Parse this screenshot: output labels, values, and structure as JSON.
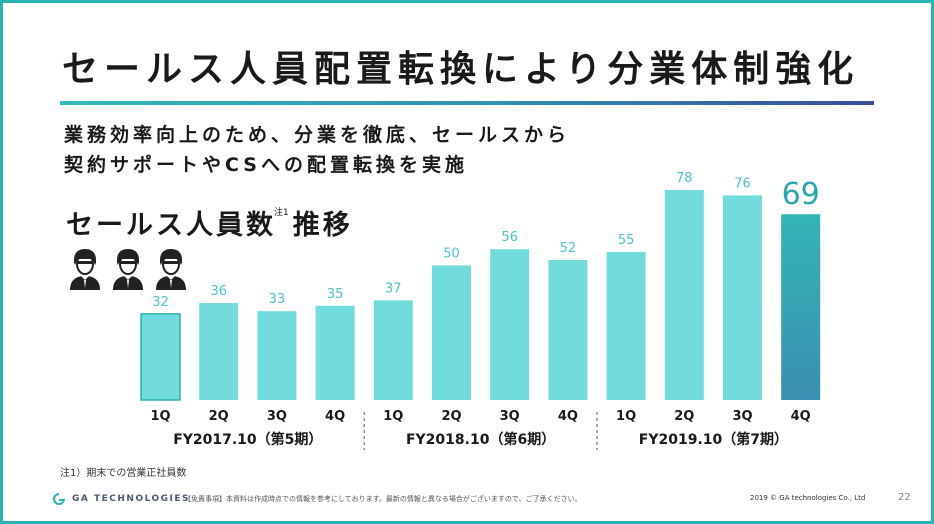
{
  "slide": {
    "title": "セールス人員配置転換により分業体制強化",
    "subtitle_lines": [
      "業務効率向上のため、分業を徹底、セールスから",
      "契約サポートやCSへの配置転換を実施"
    ],
    "metric_title": "セールス人員数",
    "metric_note_mark": "注1",
    "metric_title_suffix": "推移",
    "people_icon": "person-with-tie-icon",
    "footnote": "注1）期末での営業正社員数",
    "logo_text": "GA TECHNOLOGIES",
    "disclaimer": "【免責事項】本資料は作成時点での情報を参考にしております。最新の情報と異なる場合がございますので、ご了承ください。",
    "copyright": "2019 © GA technologies Co., Ltd",
    "page_number": "22"
  },
  "colors": {
    "bar": "#72dcdc",
    "bar_first_outline": "#2ab2b5",
    "bar_latest_top": "#33b5b6",
    "bar_latest_bottom": "#3a8fb0",
    "value_label": "#4cc3c8",
    "latest_label": "#2aa6b0",
    "accent": "#2ab2b5"
  },
  "chart_data": {
    "type": "bar",
    "categories": [
      "1Q",
      "2Q",
      "3Q",
      "4Q",
      "1Q",
      "2Q",
      "3Q",
      "4Q",
      "1Q",
      "2Q",
      "3Q",
      "4Q"
    ],
    "values": [
      32,
      36,
      33,
      35,
      37,
      50,
      56,
      52,
      55,
      78,
      76,
      69
    ],
    "groups": [
      {
        "label": "FY2017.10（第5期）",
        "span": [
          0,
          3
        ]
      },
      {
        "label": "FY2018.10（第6期）",
        "span": [
          4,
          7
        ]
      },
      {
        "label": "FY2019.10（第7期）",
        "span": [
          8,
          11
        ]
      }
    ],
    "highlight_index": 11,
    "ylim": [
      0,
      78
    ],
    "grid": false,
    "title": "",
    "xlabel": "",
    "ylabel": ""
  }
}
